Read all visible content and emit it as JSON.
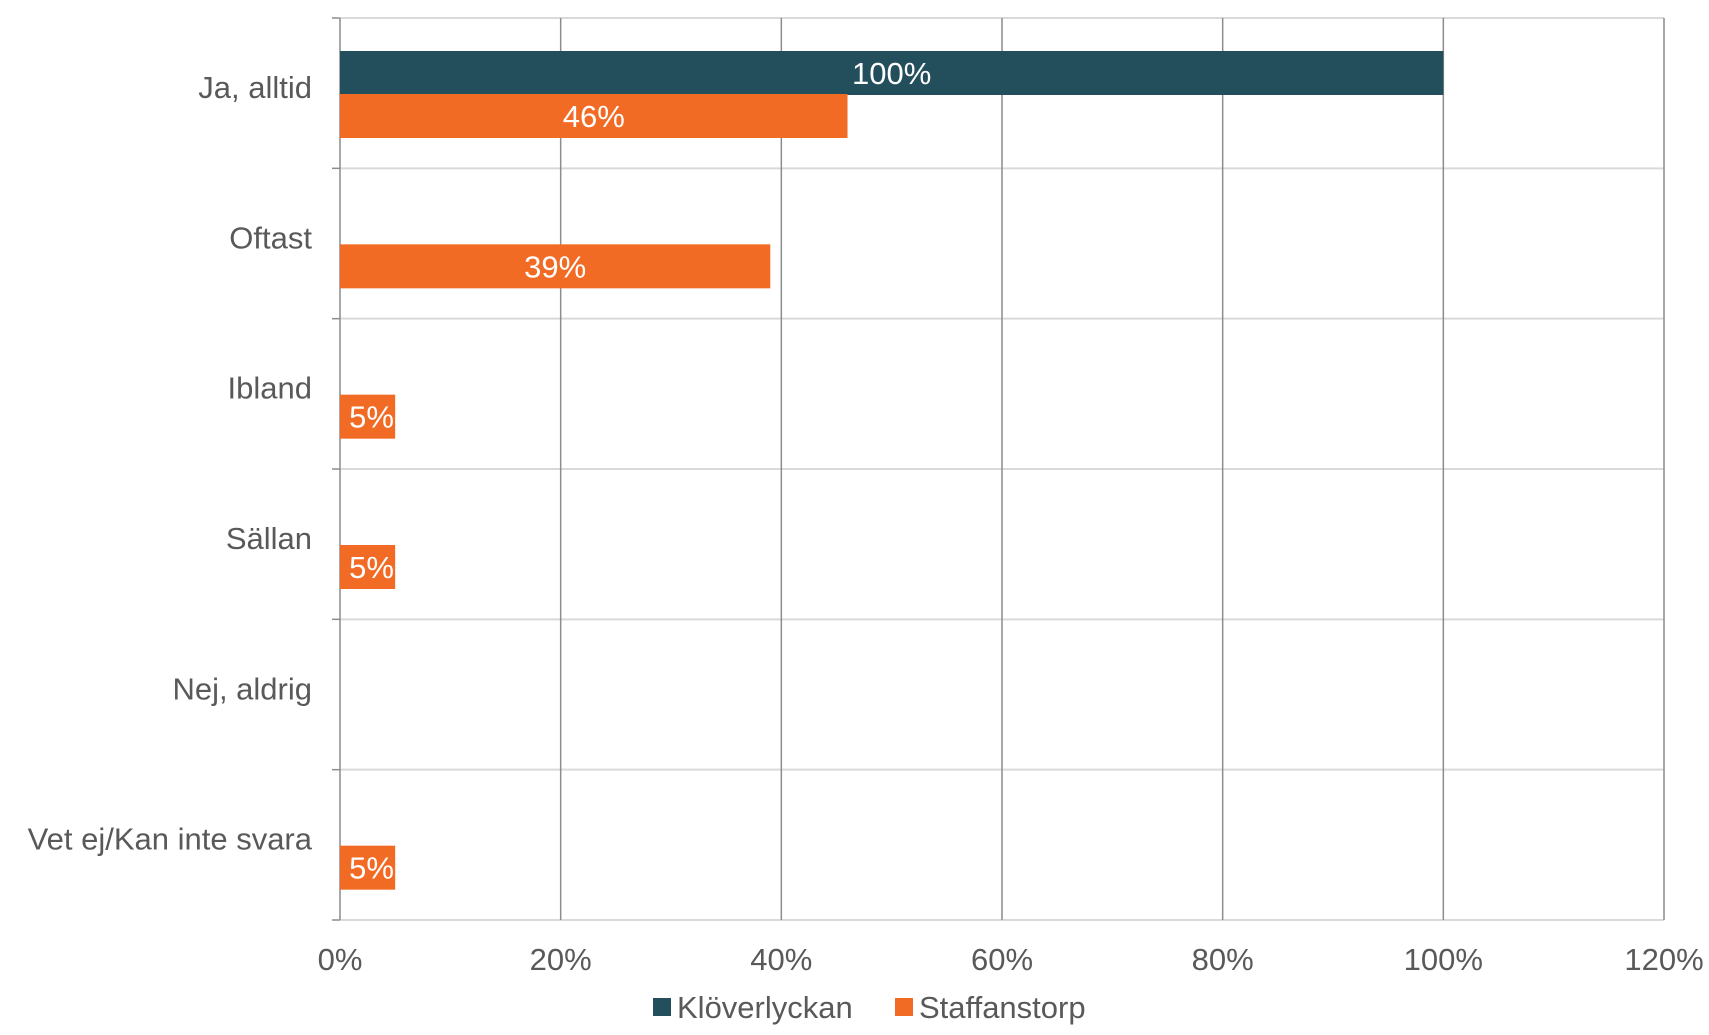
{
  "chart_data": {
    "type": "bar",
    "orientation": "horizontal",
    "title": "",
    "xlabel": "",
    "ylabel": "",
    "categories": [
      "Ja, alltid",
      "Oftast",
      "Ibland",
      "Sällan",
      "Nej, aldrig",
      "Vet ej/Kan inte svara"
    ],
    "series": [
      {
        "name": "Klöverlyckan",
        "color": "#234E5C",
        "values": [
          100,
          0,
          0,
          0,
          0,
          0
        ],
        "labels": [
          "100%",
          "",
          "",
          "",
          "",
          ""
        ]
      },
      {
        "name": "Staffanstorp",
        "color": "#F26B24",
        "values": [
          46,
          39,
          5,
          5,
          0,
          5
        ],
        "labels": [
          "46%",
          "39%",
          "5%",
          "5%",
          "",
          "5%"
        ]
      }
    ],
    "xlim": [
      0,
      120
    ],
    "x_ticks": [
      0,
      20,
      40,
      60,
      80,
      100,
      120
    ],
    "x_tick_labels": [
      "0%",
      "20%",
      "40%",
      "60%",
      "80%",
      "100%",
      "120%"
    ],
    "grid": true,
    "legend": "bottom"
  }
}
